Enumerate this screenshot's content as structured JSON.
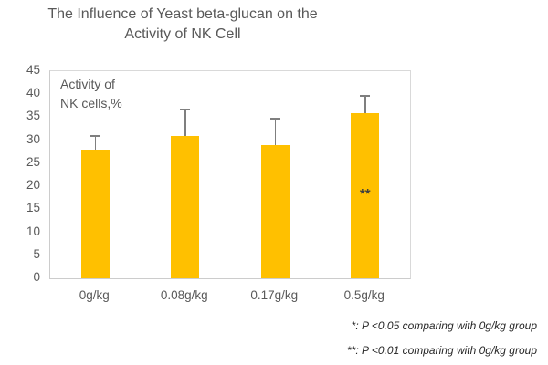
{
  "chart": {
    "title_lines": [
      "The Influence of Yeast beta-glucan on the",
      "Activity of NK Cell"
    ],
    "inner_label_lines": [
      "Activity of",
      "NK cells,%"
    ],
    "footnotes": [
      "*: P <0.05 comparing with 0g/kg group",
      "**: P <0.01 comparing with 0g/kg group"
    ]
  },
  "chart_data": {
    "type": "bar",
    "title": "The Influence of Yeast beta-glucan on the Activity of NK Cell",
    "ylabel": "Activity of NK cells,%",
    "xlabel": "",
    "categories": [
      "0g/kg",
      "0.08g/kg",
      "0.17g/kg",
      "0.5g/kg"
    ],
    "values": [
      28,
      31,
      29,
      35.8
    ],
    "error_bars_upper": [
      3.2,
      5.9,
      5.8,
      4.1
    ],
    "bar_labels": [
      "",
      "",
      "",
      "**"
    ],
    "ylim": [
      0,
      45
    ],
    "ytick_step": 5,
    "yticks": [
      0,
      5,
      10,
      15,
      20,
      25,
      30,
      35,
      40,
      45
    ],
    "grid": false,
    "legend": false,
    "bar_color": "#FFC000",
    "error_bar_color": "#7F7F7F",
    "annotation_color": "#3F3F3F"
  },
  "colors": {
    "background": "#FFFFFF",
    "title_text": "#595959",
    "axis_text": "#595959",
    "plot_border": "#D9D9D9",
    "footnote_text": "#262626"
  }
}
